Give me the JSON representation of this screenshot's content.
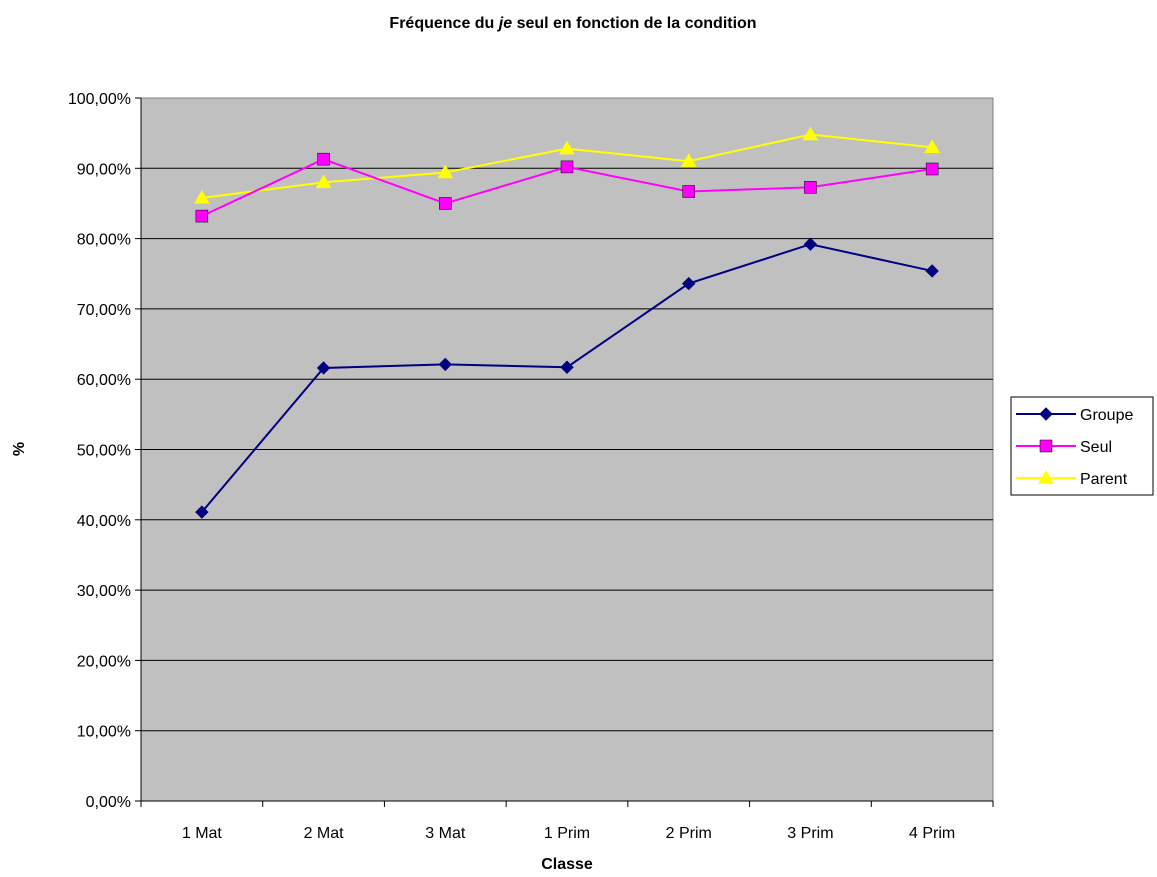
{
  "chart_data": {
    "type": "line",
    "title_parts": [
      "Fréquence du ",
      "je",
      " seul en fonction de la condition"
    ],
    "xlabel": "Classe",
    "ylabel": "%",
    "categories": [
      "1 Mat",
      "2 Mat",
      "3 Mat",
      "1 Prim",
      "2 Prim",
      "3 Prim",
      "4 Prim"
    ],
    "y_ticks": [
      "0,00%",
      "10,00%",
      "20,00%",
      "30,00%",
      "40,00%",
      "50,00%",
      "60,00%",
      "70,00%",
      "80,00%",
      "90,00%",
      "100,00%"
    ],
    "ylim": [
      0,
      100
    ],
    "grid": true,
    "legend_position": "right",
    "plot_background": "#c0c0c0",
    "series": [
      {
        "name": "Groupe",
        "color": "#000080",
        "marker": "diamond",
        "values": [
          41.1,
          61.6,
          62.1,
          61.7,
          73.6,
          79.2,
          75.4
        ]
      },
      {
        "name": "Seul",
        "color": "#ff00ff",
        "marker": "square",
        "values": [
          83.2,
          91.3,
          85.0,
          90.2,
          86.7,
          87.3,
          89.9
        ]
      },
      {
        "name": "Parent",
        "color": "#ffff00",
        "marker": "triangle",
        "values": [
          85.8,
          88.0,
          89.4,
          92.8,
          91.0,
          94.8,
          93.0
        ]
      }
    ]
  }
}
